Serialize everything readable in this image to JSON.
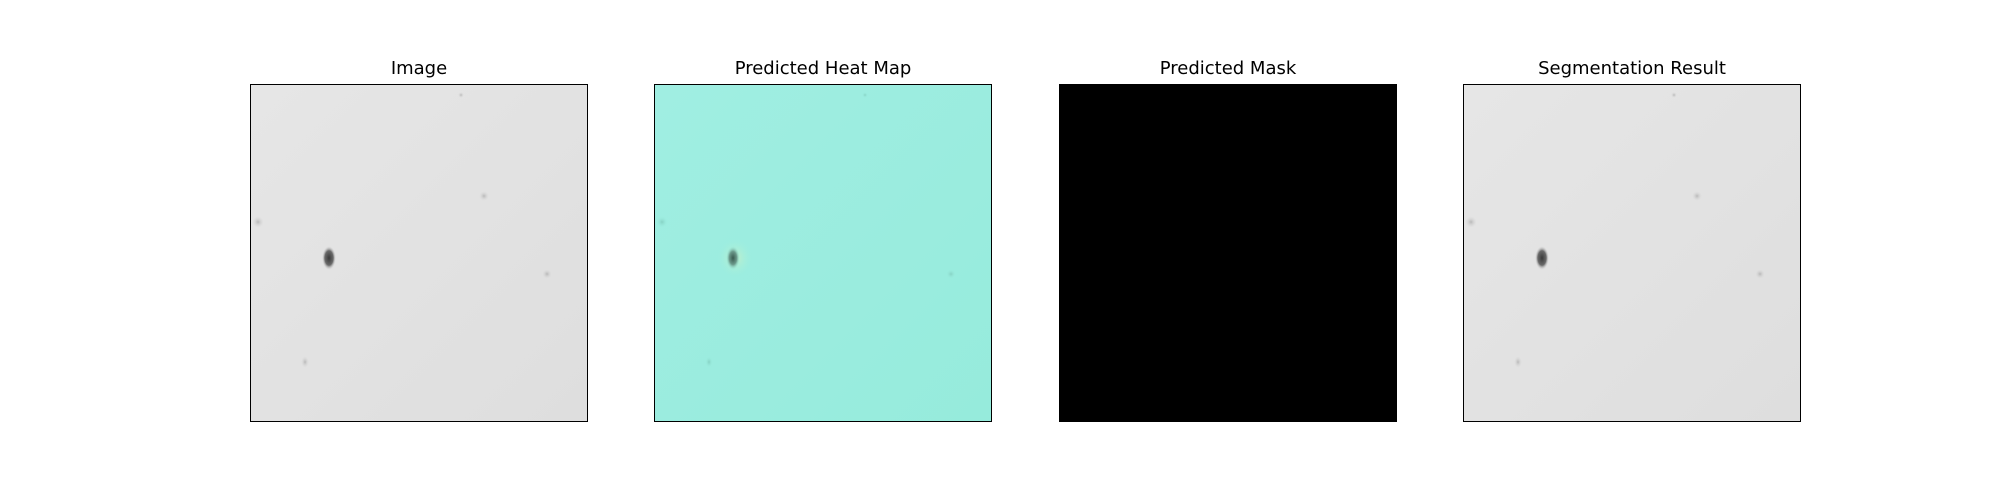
{
  "panels": [
    {
      "title": "Image",
      "style": "grayscale",
      "background": "#e2e2e2"
    },
    {
      "title": "Predicted Heat Map",
      "style": "heatmap",
      "background": "#9ceee0"
    },
    {
      "title": "Predicted Mask",
      "style": "mask",
      "background": "#000000"
    },
    {
      "title": "Segmentation Result",
      "style": "grayscale",
      "background": "#e2e2e2"
    }
  ]
}
